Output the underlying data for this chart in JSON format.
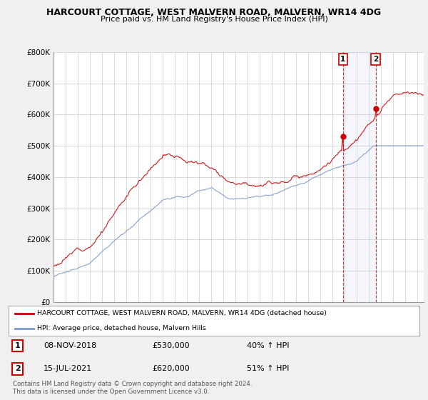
{
  "title": "HARCOURT COTTAGE, WEST MALVERN ROAD, MALVERN, WR14 4DG",
  "subtitle": "Price paid vs. HM Land Registry's House Price Index (HPI)",
  "ylim": [
    0,
    800000
  ],
  "yticks": [
    0,
    100000,
    200000,
    300000,
    400000,
    500000,
    600000,
    700000,
    800000
  ],
  "ytick_labels": [
    "£0",
    "£100K",
    "£200K",
    "£300K",
    "£400K",
    "£500K",
    "£600K",
    "£700K",
    "£800K"
  ],
  "legend_entry1": "HARCOURT COTTAGE, WEST MALVERN ROAD, MALVERN, WR14 4DG (detached house)",
  "legend_entry2": "HPI: Average price, detached house, Malvern Hills",
  "sale1_date": "08-NOV-2018",
  "sale1_price": "£530,000",
  "sale1_hpi": "40% ↑ HPI",
  "sale1_x": 2018.85,
  "sale1_y": 530000,
  "sale2_date": "15-JUL-2021",
  "sale2_price": "£620,000",
  "sale2_hpi": "51% ↑ HPI",
  "sale2_x": 2021.54,
  "sale2_y": 620000,
  "line1_color": "#cc0000",
  "line2_color": "#7799cc",
  "background_color": "#f0f0f0",
  "plot_bg_color": "#ffffff",
  "footer": "Contains HM Land Registry data © Crown copyright and database right 2024.\nThis data is licensed under the Open Government Licence v3.0.",
  "xmin": 1995,
  "xmax": 2025.5
}
